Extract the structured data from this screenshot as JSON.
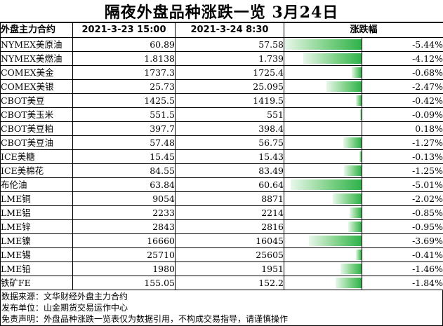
{
  "title": "隔夜外盘品种涨跌一览 3月24日",
  "headers": {
    "name": "外盘主力合约",
    "date1": "2021-3-23 15:00",
    "date2": "2021-3-24 8:30",
    "change": "涨跌幅"
  },
  "rows": [
    {
      "name": "NYMEX美原油",
      "v1": "60.89",
      "v2": "57.58",
      "pct": "-5.44%",
      "change": -5.44
    },
    {
      "name": "NYMEX美燃油",
      "v1": "1.8138",
      "v2": "1.739",
      "pct": "-4.12%",
      "change": -4.12
    },
    {
      "name": "COMEX美金",
      "v1": "1737.3",
      "v2": "1725.4",
      "pct": "-0.68%",
      "change": -0.68
    },
    {
      "name": "COMEX美银",
      "v1": "25.73",
      "v2": "25.095",
      "pct": "-2.47%",
      "change": -2.47
    },
    {
      "name": "CBOT美豆",
      "v1": "1425.5",
      "v2": "1419.5",
      "pct": "-0.42%",
      "change": -0.42
    },
    {
      "name": "CBOT美玉米",
      "v1": "551.5",
      "v2": "551",
      "pct": "-0.09%",
      "change": -0.09
    },
    {
      "name": "CBOT美豆粕",
      "v1": "397.7",
      "v2": "398.4",
      "pct": "0.18%",
      "change": 0.18
    },
    {
      "name": "CBOT美豆油",
      "v1": "57.48",
      "v2": "56.75",
      "pct": "-1.27%",
      "change": -1.27
    },
    {
      "name": "ICE美糖",
      "v1": "15.45",
      "v2": "15.43",
      "pct": "-0.13%",
      "change": -0.13
    },
    {
      "name": "ICE美棉花",
      "v1": "84.55",
      "v2": "83.49",
      "pct": "-1.25%",
      "change": -1.25
    },
    {
      "name": "布伦油",
      "v1": "63.84",
      "v2": "60.64",
      "pct": "-5.01%",
      "change": -5.01
    },
    {
      "name": "LME铜",
      "v1": "9054",
      "v2": "8871",
      "pct": "-2.02%",
      "change": -2.02
    },
    {
      "name": "LME铝",
      "v1": "2233",
      "v2": "2214",
      "pct": "-0.85%",
      "change": -0.85
    },
    {
      "name": "LME锌",
      "v1": "2843",
      "v2": "2816",
      "pct": "-0.95%",
      "change": -0.95
    },
    {
      "name": "LME镍",
      "v1": "16660",
      "v2": "16045",
      "pct": "-3.69%",
      "change": -3.69
    },
    {
      "name": "LME锡",
      "v1": "25710",
      "v2": "25605",
      "pct": "-0.41%",
      "change": -0.41
    },
    {
      "name": "LME铅",
      "v1": "1980",
      "v2": "1951",
      "pct": "-1.46%",
      "change": -1.46
    },
    {
      "name": "铁矿FE",
      "v1": "155.05",
      "v2": "152.2",
      "pct": "-1.84%",
      "change": -1.84
    }
  ],
  "footer": {
    "source": "数据来源：文华财经外盘主力合约",
    "publisher": "发布单位：山金期货交易运作中心",
    "disclaimer": "免责声明：外盘品种涨跌一览表仅为数据引用，不构成交易指导，请谨慎操作"
  },
  "colors": {
    "negative": "#2fb24a",
    "positive": "#ff2a2a"
  }
}
